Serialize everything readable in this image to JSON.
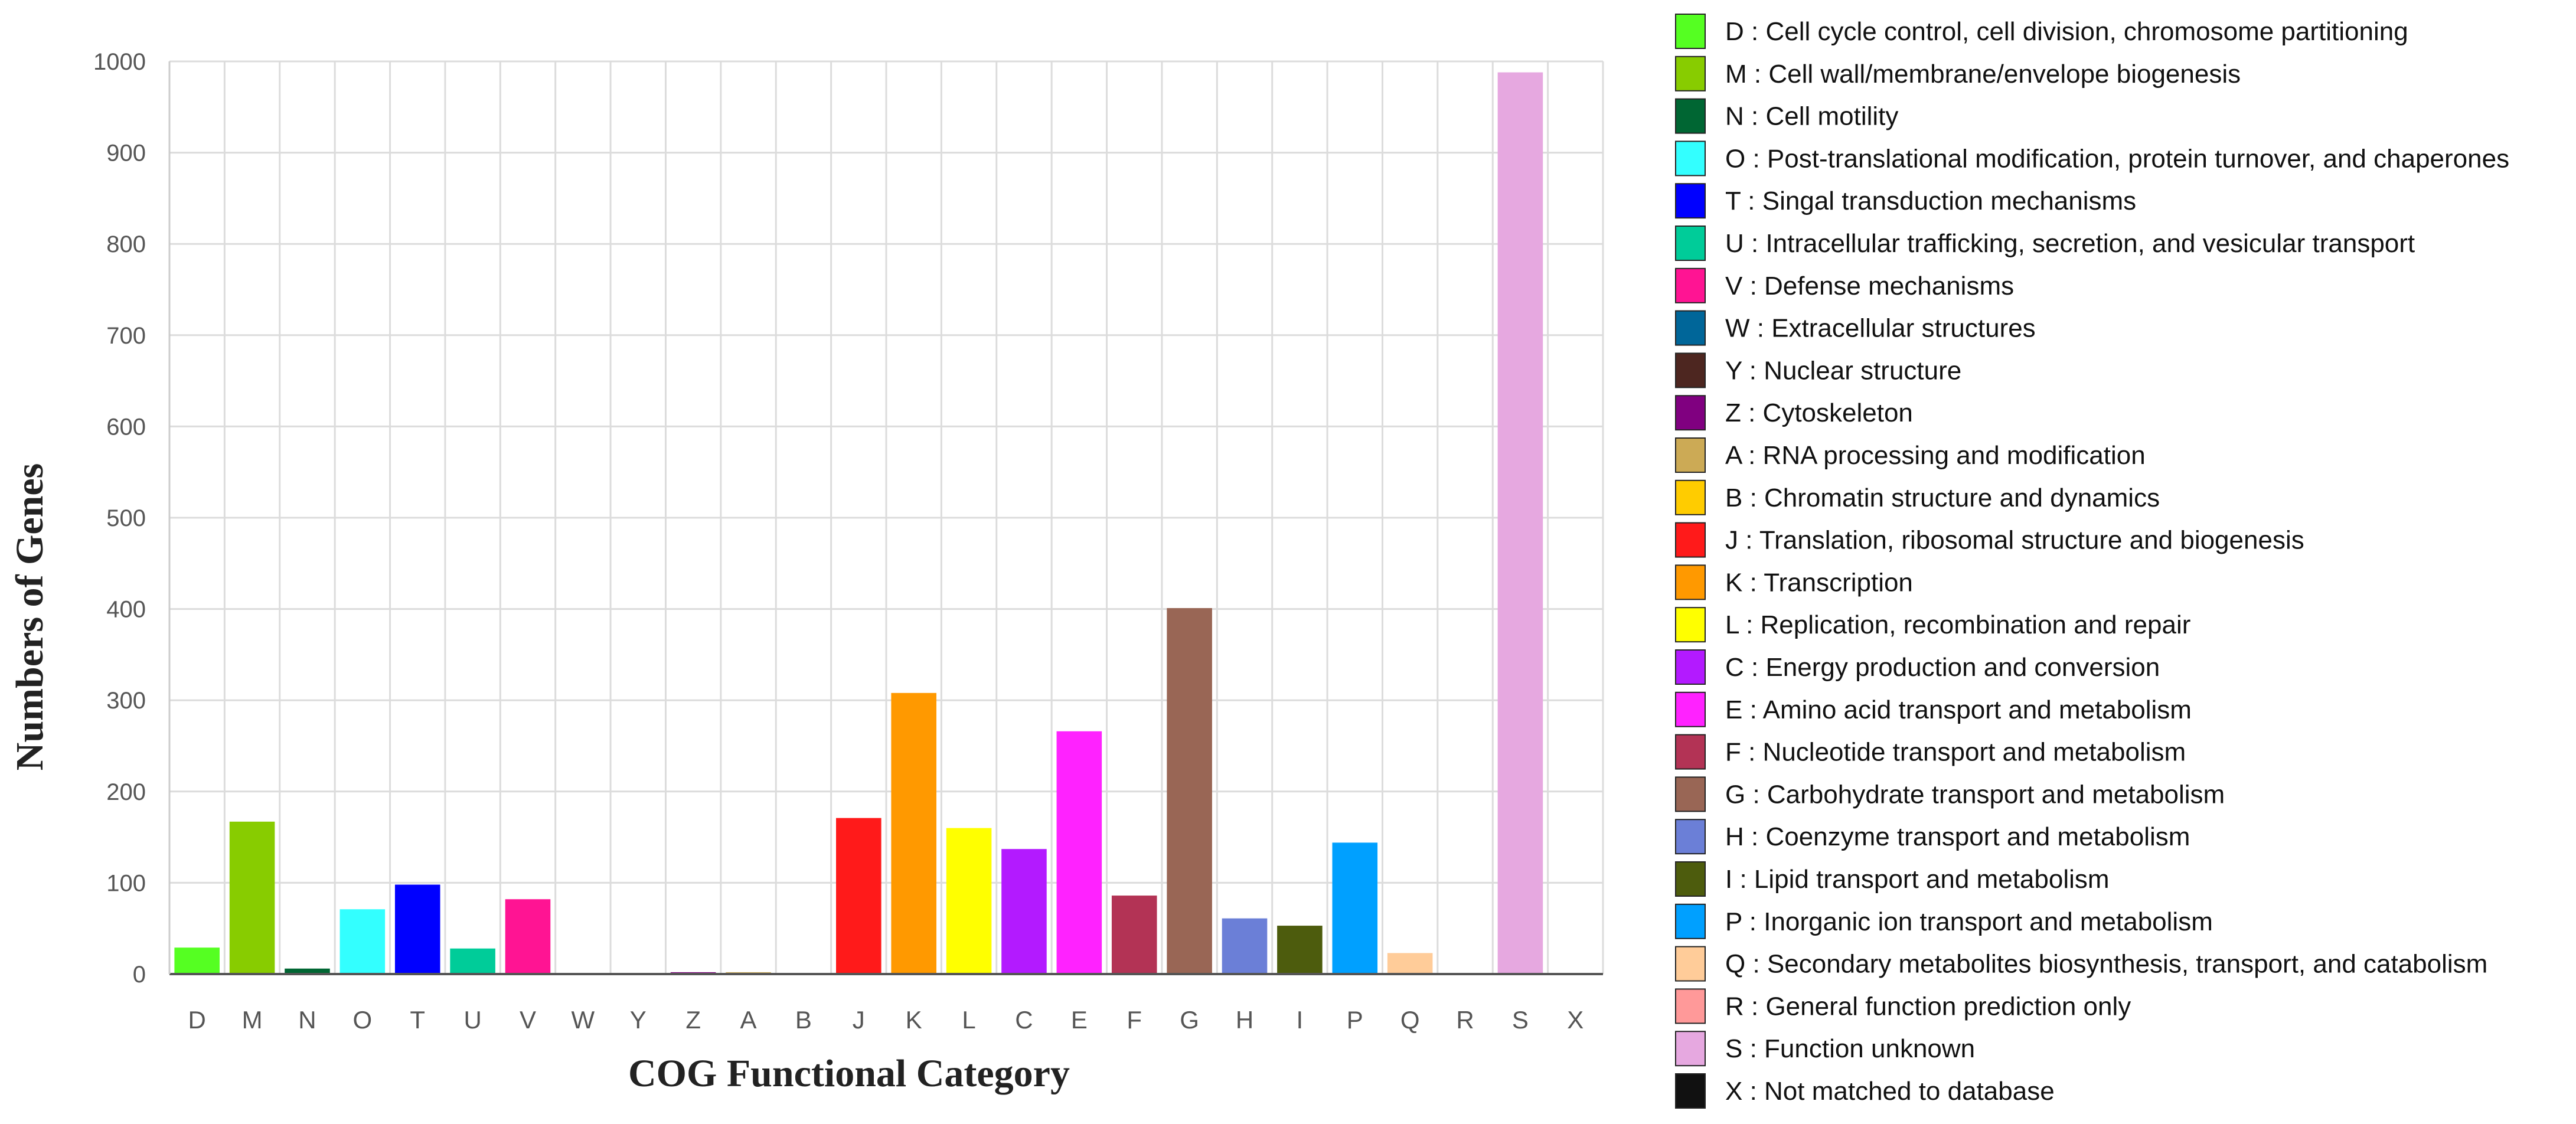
{
  "chart_data": {
    "type": "bar",
    "xlabel": "COG Functional Category",
    "ylabel": "Numbers of Genes",
    "ylim": [
      0,
      1000
    ],
    "yticks": [
      0,
      100,
      200,
      300,
      400,
      500,
      600,
      700,
      800,
      900,
      1000
    ],
    "grid": true,
    "legend_position": "right",
    "categories": [
      "D",
      "M",
      "N",
      "O",
      "T",
      "U",
      "V",
      "W",
      "Y",
      "Z",
      "A",
      "B",
      "J",
      "K",
      "L",
      "C",
      "E",
      "F",
      "G",
      "H",
      "I",
      "P",
      "Q",
      "R",
      "S",
      "X"
    ],
    "values": [
      29,
      167,
      6,
      71,
      98,
      28,
      82,
      1,
      1,
      2,
      2,
      1,
      171,
      308,
      160,
      137,
      266,
      86,
      401,
      61,
      53,
      144,
      23,
      1,
      988,
      1
    ],
    "colors": [
      "#55ff22",
      "#88cc00",
      "#006633",
      "#33ffff",
      "#0000ff",
      "#00cc99",
      "#ff1493",
      "#006699",
      "#4d2620",
      "#800080",
      "#ccaa55",
      "#ffcc00",
      "#ff1a1a",
      "#ff9900",
      "#ffff00",
      "#b31aff",
      "#ff22ff",
      "#b33355",
      "#996655",
      "#6b7fd7",
      "#4d5c0d",
      "#00a0ff",
      "#ffcc99",
      "#ff9999",
      "#e6a8e0",
      "#111111"
    ],
    "legend": [
      {
        "code": "D",
        "label": "D : Cell cycle control, cell division, chromosome partitioning"
      },
      {
        "code": "M",
        "label": "M : Cell wall/membrane/envelope biogenesis"
      },
      {
        "code": "N",
        "label": "N : Cell motility"
      },
      {
        "code": "O",
        "label": "O : Post-translational modification, protein turnover, and chaperones"
      },
      {
        "code": "T",
        "label": "T : Singal transduction mechanisms"
      },
      {
        "code": "U",
        "label": "U : Intracellular trafficking, secretion, and vesicular transport"
      },
      {
        "code": "V",
        "label": "V : Defense mechanisms"
      },
      {
        "code": "W",
        "label": "W : Extracellular structures"
      },
      {
        "code": "Y",
        "label": "Y : Nuclear structure"
      },
      {
        "code": "Z",
        "label": "Z : Cytoskeleton"
      },
      {
        "code": "A",
        "label": "A : RNA processing and modification"
      },
      {
        "code": "B",
        "label": "B : Chromatin structure and dynamics"
      },
      {
        "code": "J",
        "label": "J : Translation, ribosomal structure and biogenesis"
      },
      {
        "code": "K",
        "label": "K : Transcription"
      },
      {
        "code": "L",
        "label": "L : Replication, recombination and repair"
      },
      {
        "code": "C",
        "label": "C : Energy production and conversion"
      },
      {
        "code": "E",
        "label": "E : Amino acid transport and metabolism"
      },
      {
        "code": "F",
        "label": "F : Nucleotide transport and metabolism"
      },
      {
        "code": "G",
        "label": "G : Carbohydrate transport and metabolism"
      },
      {
        "code": "H",
        "label": "H : Coenzyme transport and metabolism"
      },
      {
        "code": "I",
        "label": "I : Lipid transport and metabolism"
      },
      {
        "code": "P",
        "label": "P : Inorganic ion transport and metabolism"
      },
      {
        "code": "Q",
        "label": "Q : Secondary metabolites biosynthesis, transport, and catabolism"
      },
      {
        "code": "R",
        "label": "R : General function prediction only"
      },
      {
        "code": "S",
        "label": "S : Function unknown"
      },
      {
        "code": "X",
        "label": "X : Not matched to database"
      }
    ]
  }
}
